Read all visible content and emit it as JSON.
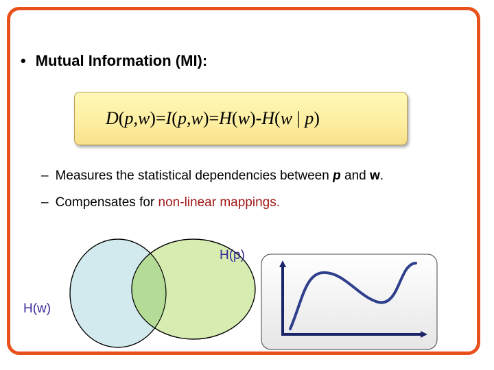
{
  "title": {
    "bullet": "•",
    "text": "Mutual Information (MI):"
  },
  "formula": {
    "parts": [
      "D",
      "(",
      "p",
      ",",
      "w",
      ")=",
      "I",
      "(",
      "p",
      ",",
      "w",
      ")=",
      "H",
      "(",
      "w",
      ")-",
      "H",
      "(",
      "w",
      " | ",
      "p",
      ")"
    ]
  },
  "bullets": [
    {
      "dash": "–",
      "prefix": "Measures the statistical dependencies between ",
      "var1": "p",
      "mid": " and ",
      "var2": "w",
      "suffix": "."
    },
    {
      "dash": "–",
      "prefix": "Compensates for ",
      "highlight": "non-linear mappings."
    }
  ],
  "venn": {
    "label_a": "H(p)",
    "label_b": "H(w)",
    "colors": {
      "hw_fill": "#d2eaee",
      "hp_fill": "#d6ecb0",
      "overlap": "#b4dc96"
    }
  },
  "curve_panel": {
    "colors": {
      "curve": "#2e3f8c",
      "axes": "#1a2468"
    }
  }
}
